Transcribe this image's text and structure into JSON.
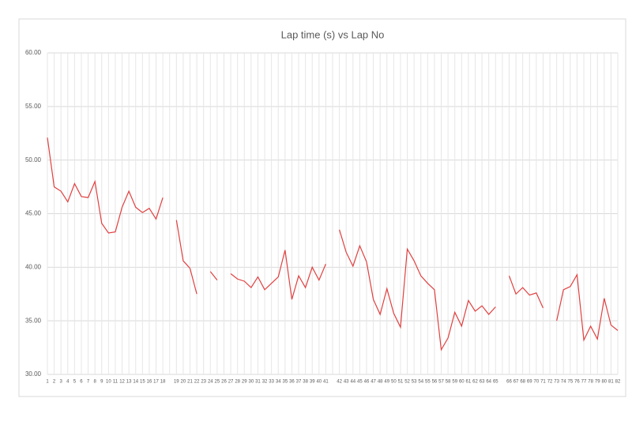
{
  "chart_data": {
    "type": "line",
    "title": "Lap time (s) vs Lap No",
    "categories": [
      "1",
      "2",
      "3",
      "4",
      "5",
      "6",
      "7",
      "8",
      "9",
      "10",
      "11",
      "12",
      "13",
      "14",
      "15",
      "16",
      "17",
      "18",
      null,
      "19",
      "20",
      "21",
      "22",
      "23",
      "24",
      "25",
      "26",
      "27",
      "28",
      "29",
      "30",
      "31",
      "32",
      "33",
      "34",
      "35",
      "36",
      "37",
      "38",
      "39",
      "40",
      "41",
      null,
      "42",
      "43",
      "44",
      "45",
      "46",
      "47",
      "48",
      "49",
      "50",
      "51",
      "52",
      "53",
      "54",
      "55",
      "56",
      "57",
      "58",
      "59",
      "60",
      "61",
      "62",
      "63",
      "64",
      "65",
      null,
      "66",
      "67",
      "68",
      "69",
      "70",
      "71",
      "72",
      "73",
      "74",
      "75",
      "76",
      "77",
      "78",
      "79",
      "80",
      "81",
      "82"
    ],
    "series": [
      {
        "name": "Lap time (s)",
        "color": "#e04040",
        "values": [
          52.1,
          47.5,
          47.1,
          46.1,
          47.8,
          46.6,
          46.5,
          48.0,
          44.1,
          43.2,
          43.3,
          45.6,
          47.1,
          45.6,
          45.1,
          45.5,
          44.5,
          46.5,
          null,
          44.4,
          40.6,
          39.9,
          37.5,
          null,
          39.6,
          38.8,
          null,
          39.4,
          38.9,
          38.7,
          38.1,
          39.1,
          37.9,
          38.5,
          39.1,
          41.6,
          37.0,
          39.2,
          38.1,
          40.0,
          38.8,
          40.3,
          null,
          43.5,
          41.4,
          40.1,
          42.0,
          40.5,
          37.0,
          35.6,
          38.0,
          35.7,
          34.4,
          41.7,
          40.6,
          39.2,
          38.5,
          37.9,
          32.3,
          33.4,
          35.8,
          34.5,
          36.9,
          35.9,
          36.4,
          35.6,
          36.3,
          null,
          39.2,
          37.5,
          38.1,
          37.4,
          37.6,
          36.2,
          null,
          35.0,
          37.9,
          38.2,
          39.3,
          33.2,
          34.5,
          33.3,
          37.1,
          34.6,
          34.1
        ]
      }
    ],
    "ylim": [
      30,
      60
    ],
    "yticks": [
      {
        "value": 30,
        "label": "30.00"
      },
      {
        "value": 35,
        "label": "35.00"
      },
      {
        "value": 40,
        "label": "40.00"
      },
      {
        "value": 45,
        "label": "45.00"
      },
      {
        "value": 50,
        "label": "50.00"
      },
      {
        "value": 55,
        "label": "55.00"
      },
      {
        "value": 60,
        "label": "60.00"
      }
    ],
    "grid": true
  }
}
